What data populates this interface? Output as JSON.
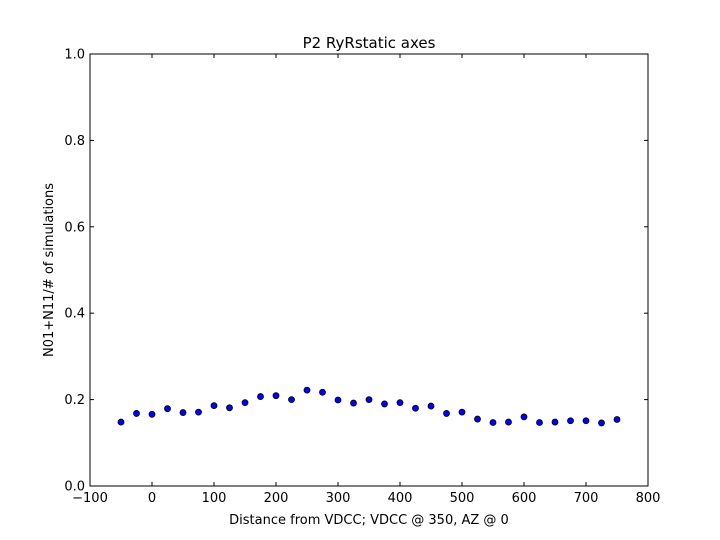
{
  "chart_data": {
    "type": "scatter",
    "title": "P2 RyRstatic axes",
    "xlabel": "Distance from VDCC; VDCC @ 350, AZ @ 0",
    "ylabel": "N01+N11/# of simulations",
    "xlim": [
      -100,
      800
    ],
    "ylim": [
      0.0,
      1.0
    ],
    "xticks": [
      -100,
      0,
      100,
      200,
      300,
      400,
      500,
      600,
      700,
      800
    ],
    "xtick_labels": [
      "−100",
      "0",
      "100",
      "200",
      "300",
      "400",
      "500",
      "600",
      "700",
      "800"
    ],
    "yticks": [
      0.0,
      0.2,
      0.4,
      0.6,
      0.8,
      1.0
    ],
    "ytick_labels": [
      "0.0",
      "0.2",
      "0.4",
      "0.6",
      "0.8",
      "1.0"
    ],
    "grid": false,
    "marker_color": "#0000ff",
    "marker_edge": "#000000",
    "x": [
      -50,
      -25,
      0,
      25,
      50,
      75,
      100,
      125,
      150,
      175,
      200,
      225,
      250,
      275,
      300,
      325,
      350,
      375,
      400,
      425,
      450,
      475,
      500,
      525,
      550,
      575,
      600,
      625,
      650,
      675,
      700,
      725,
      750
    ],
    "y": [
      0.148,
      0.168,
      0.166,
      0.179,
      0.17,
      0.171,
      0.186,
      0.181,
      0.193,
      0.207,
      0.209,
      0.2,
      0.222,
      0.217,
      0.199,
      0.192,
      0.2,
      0.19,
      0.193,
      0.18,
      0.185,
      0.168,
      0.171,
      0.155,
      0.147,
      0.148,
      0.16,
      0.147,
      0.148,
      0.151,
      0.151,
      0.146,
      0.154
    ]
  }
}
